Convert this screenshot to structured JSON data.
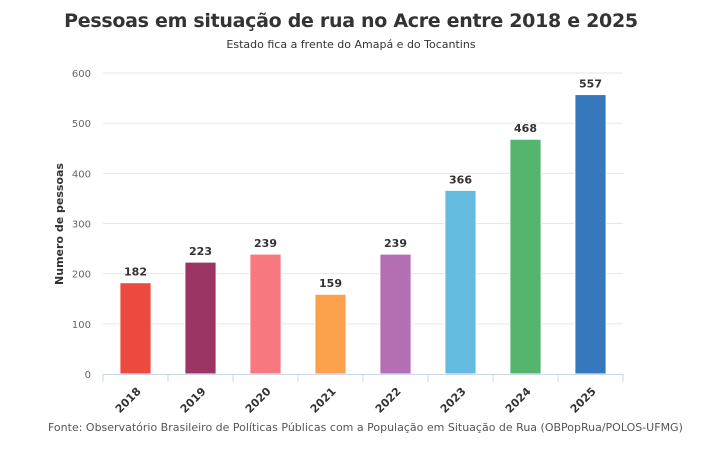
{
  "chart_data": {
    "type": "bar",
    "title": "Pessoas em situação de rua no Acre entre 2018 e 2025",
    "subtitle": "Estado fica a frente do Amapá e do Tocantins",
    "xlabel": "",
    "ylabel": "Numero de pessoas",
    "ylim": [
      0,
      600
    ],
    "yticks": [
      0,
      100,
      200,
      300,
      400,
      500,
      600
    ],
    "grid": true,
    "categories": [
      "2018",
      "2019",
      "2020",
      "2021",
      "2022",
      "2023",
      "2024",
      "2025"
    ],
    "values": [
      182,
      223,
      239,
      159,
      239,
      366,
      468,
      557
    ],
    "colors": [
      "#ec4a3e",
      "#9b3664",
      "#f7797f",
      "#fca24d",
      "#b46fb3",
      "#63bce0",
      "#55b46e",
      "#3578bd"
    ],
    "data_labels": true,
    "source": "Fonte: Observatório Brasileiro de Políticas Públicas com a População em Situação de Rua (OBPopRua/POLOS-UFMG)"
  }
}
